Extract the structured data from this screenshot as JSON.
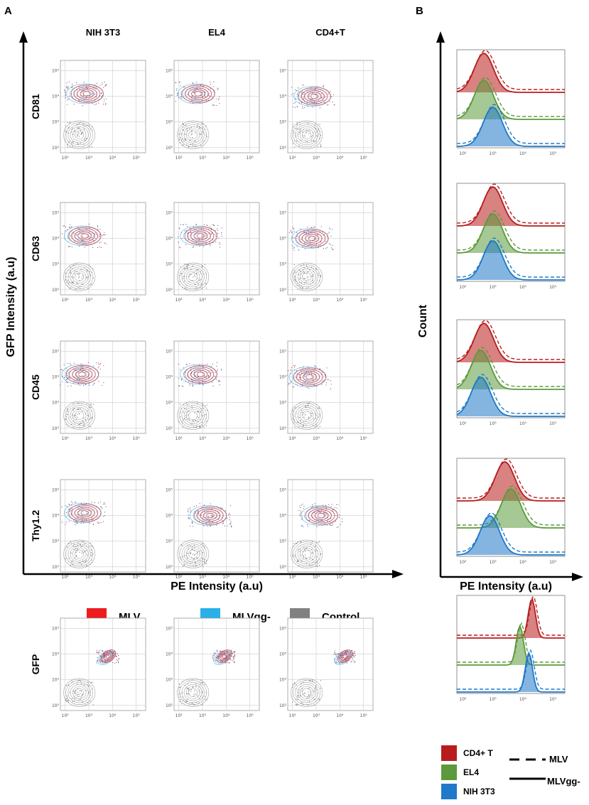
{
  "chart_data": {
    "type": "flow-cytometry",
    "panels": [
      {
        "panel": "A",
        "kind": "contour-plot-grid",
        "columns": [
          "NIH 3T3",
          "EL4",
          "CD4+T"
        ],
        "rows": [
          "CD81",
          "CD63",
          "CD45",
          "Thy1.2",
          "GFP"
        ],
        "xlabel": "PE Intensity (a.u)",
        "ylabel": "GFP  Intensity (a.u)",
        "axis_scale": "log10",
        "x_ticks": [
          "10²",
          "10³",
          "10⁴",
          "10⁵"
        ],
        "y_ticks": [
          "10²",
          "10³",
          "10⁴",
          "10⁵"
        ],
        "legend": [
          {
            "label": "MLV",
            "color": "#ee1c1c"
          },
          {
            "label": "MLVgg-",
            "color": "#29b0e8"
          },
          {
            "label": "Control",
            "color": "#808080"
          }
        ],
        "populations": [
          {
            "row": "CD81",
            "column": "NIH 3T3",
            "pe_log10": 2.9,
            "gfp_log10": 4.1
          },
          {
            "row": "CD81",
            "column": "EL4",
            "pe_log10": 2.8,
            "gfp_log10": 4.1
          },
          {
            "row": "CD81",
            "column": "CD4+T",
            "pe_log10": 2.9,
            "gfp_log10": 4.0
          },
          {
            "row": "CD63",
            "column": "NIH 3T3",
            "pe_log10": 2.8,
            "gfp_log10": 4.1
          },
          {
            "row": "CD63",
            "column": "EL4",
            "pe_log10": 2.9,
            "gfp_log10": 4.1
          },
          {
            "row": "CD63",
            "column": "CD4+T",
            "pe_log10": 2.8,
            "gfp_log10": 4.0
          },
          {
            "row": "CD45",
            "column": "NIH 3T3",
            "pe_log10": 2.7,
            "gfp_log10": 4.1
          },
          {
            "row": "CD45",
            "column": "EL4",
            "pe_log10": 2.9,
            "gfp_log10": 4.1
          },
          {
            "row": "CD45",
            "column": "CD4+T",
            "pe_log10": 2.7,
            "gfp_log10": 4.0
          },
          {
            "row": "Thy1.2",
            "column": "NIH 3T3",
            "pe_log10": 2.8,
            "gfp_log10": 4.1
          },
          {
            "row": "Thy1.2",
            "column": "EL4",
            "pe_log10": 3.3,
            "gfp_log10": 4.0
          },
          {
            "row": "Thy1.2",
            "column": "CD4+T",
            "pe_log10": 3.2,
            "gfp_log10": 4.0
          },
          {
            "row": "GFP",
            "column": "NIH 3T3",
            "pe_log10": 3.8,
            "gfp_log10": 3.9
          },
          {
            "row": "GFP",
            "column": "EL4",
            "pe_log10": 3.9,
            "gfp_log10": 3.9
          },
          {
            "row": "GFP",
            "column": "CD4+T",
            "pe_log10": 4.2,
            "gfp_log10": 3.9
          }
        ],
        "control_population": {
          "pe_log10": 2.6,
          "gfp_log10": 2.5
        }
      },
      {
        "panel": "B",
        "kind": "histogram-overlay",
        "xlabel": "PE Intensity (a.u)",
        "ylabel": "Count",
        "x_ticks": [
          "10²",
          "10³",
          "10⁴",
          "10⁵"
        ],
        "legend_cells": [
          {
            "label": "CD4+ T",
            "color": "#b81c1c"
          },
          {
            "label": "EL4",
            "color": "#5b9a3c"
          },
          {
            "label": "NIH 3T3",
            "color": "#1f78c8"
          }
        ],
        "legend_lines": [
          {
            "label": "MLV",
            "style": "dashed"
          },
          {
            "label": "MLVgg-",
            "style": "solid"
          }
        ],
        "rows": [
          {
            "marker": "CD81",
            "peaks_log10": {
              "CD4+ T": 2.7,
              "EL4": 2.7,
              "NIH 3T3": 3.0
            }
          },
          {
            "marker": "CD63",
            "peaks_log10": {
              "CD4+ T": 3.0,
              "EL4": 3.0,
              "NIH 3T3": 3.0
            }
          },
          {
            "marker": "CD45",
            "peaks_log10": {
              "CD4+ T": 2.7,
              "EL4": 2.6,
              "NIH 3T3": 2.6
            }
          },
          {
            "marker": "Thy1.2",
            "peaks_log10": {
              "CD4+ T": 3.4,
              "EL4": 3.6,
              "NIH 3T3": 2.9
            }
          },
          {
            "marker": "GFP",
            "peaks_log10": {
              "CD4+ T": 4.3,
              "EL4": 3.9,
              "NIH 3T3": 4.2
            }
          }
        ]
      }
    ]
  },
  "labels": {
    "panel_a": "A",
    "panel_b": "B",
    "a_xlabel": "PE Intensity (a.u)",
    "a_ylabel": "GFP  Intensity (a.u)",
    "b_xlabel": "PE Intensity (a.u)",
    "b_ylabel": "Count"
  }
}
